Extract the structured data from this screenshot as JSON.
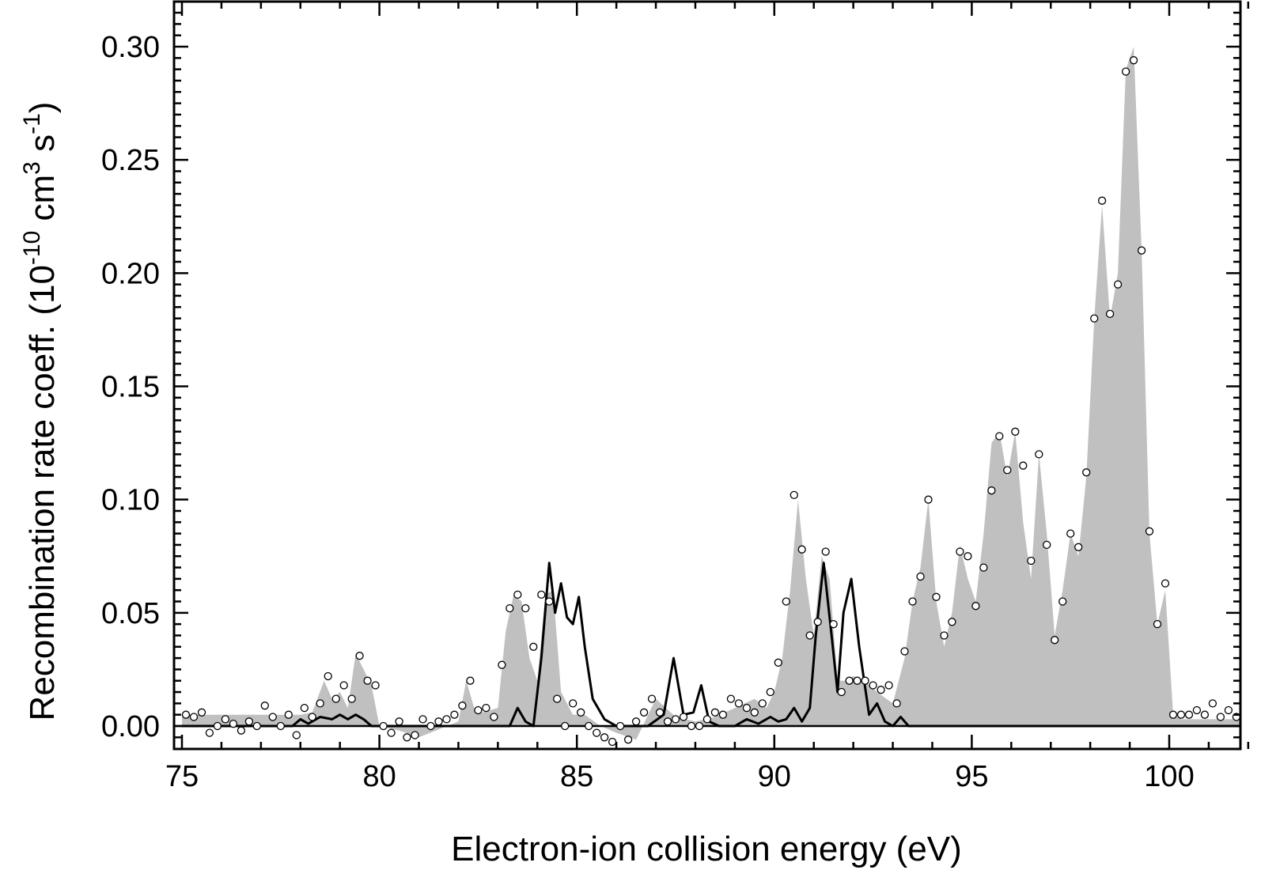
{
  "chart_data": {
    "type": "area",
    "title": "",
    "xlabel": "Electron-ion collision energy (eV)",
    "ylabel_main": "Recombination rate coeff. (10",
    "ylabel_exp1": "-10",
    "ylabel_mid": " cm",
    "ylabel_exp2": "3",
    "ylabel_mid2": " s",
    "ylabel_exp3": "-1",
    "ylabel_end": ")",
    "xlim": [
      75,
      102
    ],
    "ylim": [
      -0.01,
      0.32
    ],
    "xticks": [
      75,
      80,
      85,
      90,
      95,
      100
    ],
    "xtick_labels": [
      "75",
      "80",
      "85",
      "90",
      "95",
      "100"
    ],
    "yticks": [
      0.0,
      0.05,
      0.1,
      0.15,
      0.2,
      0.25,
      0.3
    ],
    "ytick_labels": [
      "0.00",
      "0.05",
      "0.10",
      "0.15",
      "0.20",
      "0.25",
      "0.30"
    ],
    "grid": false,
    "colors": {
      "filled_area": "#c0c0c0",
      "theory_line": "#000000",
      "marker_fill": "#ffffff",
      "marker_edge": "#000000"
    },
    "series": [
      {
        "kind": "filled_area",
        "x": [
          75.0,
          77.5,
          78.0,
          78.3,
          78.6,
          78.8,
          79.0,
          79.2,
          79.4,
          79.6,
          79.8,
          80.0,
          80.5,
          81.0,
          82.0,
          82.2,
          82.4,
          82.6,
          83.0,
          83.2,
          83.4,
          83.6,
          83.8,
          84.0,
          84.2,
          84.4,
          84.6,
          84.9,
          85.2,
          85.6,
          86.0,
          86.5,
          87.0,
          87.5,
          88.0,
          88.5,
          89.0,
          89.5,
          89.8,
          90.0,
          90.2,
          90.4,
          90.6,
          90.8,
          91.0,
          91.2,
          91.4,
          91.6,
          91.8,
          92.0,
          92.3,
          92.6,
          93.0,
          93.3,
          93.5,
          93.7,
          93.9,
          94.1,
          94.3,
          94.5,
          94.7,
          94.9,
          95.1,
          95.3,
          95.5,
          95.7,
          95.9,
          96.1,
          96.3,
          96.5,
          96.7,
          96.9,
          97.1,
          97.3,
          97.5,
          97.7,
          97.9,
          98.1,
          98.3,
          98.5,
          98.7,
          98.9,
          99.1,
          99.3,
          99.5,
          99.7,
          99.9,
          100.1,
          100.3,
          102.0
        ],
        "y": [
          0.005,
          0.005,
          0.005,
          0.006,
          0.02,
          0.012,
          0.015,
          0.008,
          0.032,
          0.025,
          0.018,
          0.0,
          -0.002,
          -0.005,
          0.002,
          0.02,
          0.008,
          0.006,
          0.008,
          0.042,
          0.058,
          0.055,
          0.03,
          0.02,
          0.058,
          0.06,
          0.015,
          0.005,
          0.005,
          0.0,
          -0.003,
          -0.006,
          0.012,
          0.004,
          0.002,
          0.004,
          0.008,
          0.012,
          0.008,
          0.015,
          0.03,
          0.06,
          0.1,
          0.065,
          0.04,
          0.075,
          0.065,
          0.02,
          0.02,
          0.022,
          0.02,
          0.015,
          0.01,
          0.03,
          0.055,
          0.07,
          0.1,
          0.055,
          0.035,
          0.05,
          0.08,
          0.065,
          0.055,
          0.085,
          0.125,
          0.13,
          0.11,
          0.13,
          0.09,
          0.065,
          0.12,
          0.085,
          0.04,
          0.06,
          0.085,
          0.075,
          0.11,
          0.18,
          0.23,
          0.18,
          0.2,
          0.29,
          0.3,
          0.21,
          0.085,
          0.045,
          0.06,
          0.005,
          0.003,
          0.003
        ]
      },
      {
        "kind": "theory_line",
        "x": [
          75.0,
          77.8,
          78.0,
          78.2,
          78.5,
          78.8,
          79.0,
          79.2,
          79.4,
          79.6,
          79.8,
          80.0,
          83.3,
          83.5,
          83.7,
          83.9,
          84.1,
          84.3,
          84.45,
          84.6,
          84.75,
          84.9,
          85.05,
          85.2,
          85.4,
          85.7,
          86.0,
          86.8,
          87.2,
          87.45,
          87.7,
          87.95,
          88.15,
          88.35,
          88.6,
          89.0,
          89.3,
          89.6,
          89.9,
          90.1,
          90.3,
          90.5,
          90.7,
          90.9,
          91.05,
          91.25,
          91.45,
          91.6,
          91.75,
          91.95,
          92.15,
          92.4,
          92.6,
          92.8,
          93.0,
          93.2,
          93.4,
          93.6,
          102.0
        ],
        "y": [
          0.0,
          0.0,
          0.003,
          0.001,
          0.004,
          0.003,
          0.005,
          0.003,
          0.005,
          0.003,
          0.0,
          0.0,
          0.0,
          0.008,
          0.002,
          0.0,
          0.03,
          0.072,
          0.05,
          0.063,
          0.048,
          0.045,
          0.057,
          0.035,
          0.012,
          0.003,
          0.0,
          0.0,
          0.005,
          0.03,
          0.005,
          0.006,
          0.018,
          0.002,
          0.0,
          0.0,
          0.003,
          0.001,
          0.004,
          0.002,
          0.003,
          0.008,
          0.002,
          0.008,
          0.04,
          0.072,
          0.04,
          0.015,
          0.05,
          0.065,
          0.035,
          0.005,
          0.01,
          0.002,
          0.0,
          0.004,
          0.0,
          0.0,
          0.0
        ]
      },
      {
        "kind": "markers",
        "x": [
          75.1,
          75.3,
          75.5,
          75.7,
          75.9,
          76.1,
          76.3,
          76.5,
          76.7,
          76.9,
          77.1,
          77.3,
          77.5,
          77.7,
          77.9,
          78.1,
          78.3,
          78.5,
          78.7,
          78.9,
          79.1,
          79.3,
          79.5,
          79.7,
          79.9,
          80.1,
          80.3,
          80.5,
          80.7,
          80.9,
          81.1,
          81.3,
          81.5,
          81.7,
          81.9,
          82.1,
          82.3,
          82.5,
          82.7,
          82.9,
          83.1,
          83.3,
          83.5,
          83.7,
          83.9,
          84.1,
          84.3,
          84.5,
          84.7,
          84.9,
          85.1,
          85.3,
          85.5,
          85.7,
          85.9,
          86.1,
          86.3,
          86.5,
          86.7,
          86.9,
          87.1,
          87.3,
          87.5,
          87.7,
          87.9,
          88.1,
          88.3,
          88.5,
          88.7,
          88.9,
          89.1,
          89.3,
          89.5,
          89.7,
          89.9,
          90.1,
          90.3,
          90.5,
          90.7,
          90.9,
          91.1,
          91.3,
          91.5,
          91.7,
          91.9,
          92.1,
          92.3,
          92.5,
          92.7,
          92.9,
          93.1,
          93.3,
          93.5,
          93.7,
          93.9,
          94.1,
          94.3,
          94.5,
          94.7,
          94.9,
          95.1,
          95.3,
          95.5,
          95.7,
          95.9,
          96.1,
          96.3,
          96.5,
          96.7,
          96.9,
          97.1,
          97.3,
          97.5,
          97.7,
          97.9,
          98.1,
          98.3,
          98.5,
          98.7,
          98.9,
          99.1,
          99.3,
          99.5,
          99.7,
          99.9,
          100.1,
          100.3,
          100.5,
          100.7,
          100.9,
          101.1,
          101.3,
          101.5,
          101.7,
          101.9
        ],
        "y": [
          0.005,
          0.004,
          0.006,
          -0.003,
          0.0,
          0.003,
          0.001,
          -0.002,
          0.002,
          0.0,
          0.009,
          0.004,
          0.0,
          0.005,
          -0.004,
          0.008,
          0.004,
          0.01,
          0.022,
          0.012,
          0.018,
          0.012,
          0.031,
          0.02,
          0.018,
          0.0,
          -0.003,
          0.002,
          -0.005,
          -0.004,
          0.003,
          0.0,
          0.002,
          0.003,
          0.005,
          0.009,
          0.02,
          0.007,
          0.008,
          0.004,
          0.027,
          0.052,
          0.058,
          0.052,
          0.035,
          0.058,
          0.055,
          0.012,
          0.0,
          0.01,
          0.006,
          0.0,
          -0.003,
          -0.005,
          -0.007,
          0.0,
          -0.006,
          0.002,
          0.006,
          0.012,
          0.006,
          0.002,
          0.003,
          0.004,
          0.0,
          0.0,
          0.003,
          0.006,
          0.005,
          0.012,
          0.01,
          0.008,
          0.006,
          0.01,
          0.015,
          0.028,
          0.055,
          0.102,
          0.078,
          0.04,
          0.046,
          0.077,
          0.045,
          0.015,
          0.02,
          0.02,
          0.02,
          0.018,
          0.016,
          0.018,
          0.01,
          0.033,
          0.055,
          0.066,
          0.1,
          0.057,
          0.04,
          0.046,
          0.077,
          0.075,
          0.053,
          0.07,
          0.104,
          0.128,
          0.113,
          0.13,
          0.115,
          0.073,
          0.12,
          0.08,
          0.038,
          0.055,
          0.085,
          0.079,
          0.112,
          0.18,
          0.232,
          0.182,
          0.195,
          0.289,
          0.294,
          0.21,
          0.086,
          0.045,
          0.063,
          0.005,
          0.005,
          0.005,
          0.007,
          0.005,
          0.01,
          0.004,
          0.007,
          0.004,
          0.005
        ]
      }
    ]
  }
}
